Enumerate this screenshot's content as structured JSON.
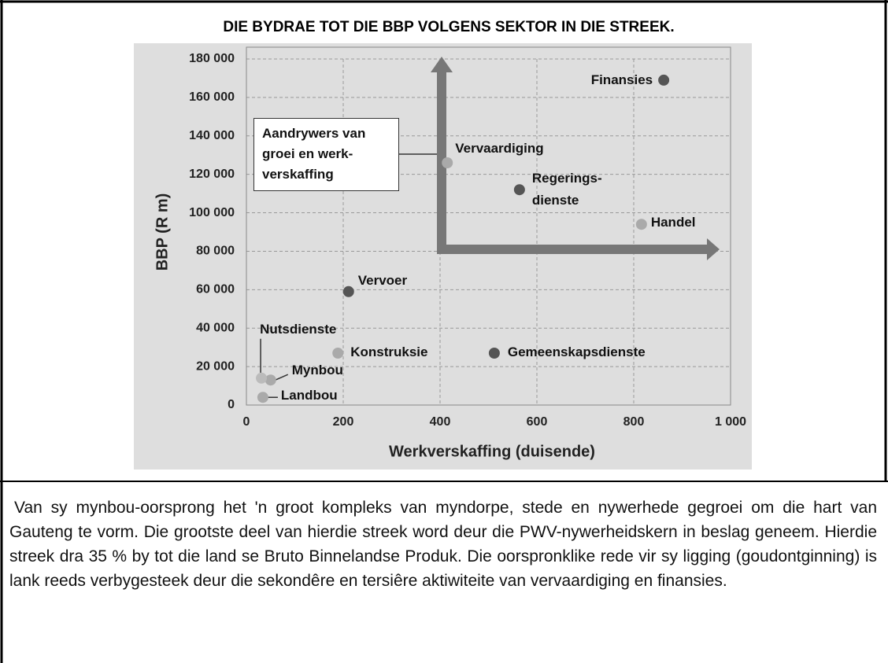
{
  "chart_data": {
    "type": "scatter",
    "title": "DIE BYDRAE TOT DIE BBP VOLGENS SEKTOR IN DIE STREEK.",
    "xlabel": "Werkverskaffing (duisende)",
    "ylabel": "BBP (R m)",
    "annotation": "Aandrywers van\ngroei en werk-\nverskaffing",
    "labels": [
      "Finansies",
      "Vervaardiging",
      "Regerings-\ndienste",
      "Handel",
      "Vervoer",
      "Konstruksie",
      "Gemeenskapsdienste",
      "Mynbou",
      "Landbou",
      "Nutsdienste"
    ],
    "x": [
      862,
      415,
      564,
      816,
      211,
      189,
      512,
      50,
      34,
      31
    ],
    "values": [
      169000,
      126000,
      112000,
      94000,
      59000,
      27000,
      27000,
      13000,
      4000,
      14000
    ],
    "colors": [
      "#555555",
      "#aaaaaa",
      "#555555",
      "#aaaaaa",
      "#555555",
      "#aaaaaa",
      "#555555",
      "#aaaaaa",
      "#aaaaaa",
      "#bbbbbb"
    ],
    "xlim": [
      0,
      1000
    ],
    "ylim": [
      0,
      180000
    ],
    "xticks": [
      0,
      200,
      400,
      600,
      800,
      {
        "value": 1000,
        "label": "1 000"
      }
    ],
    "yticks": [
      0,
      {
        "value": 20000,
        "label": "20 000"
      },
      {
        "value": 40000,
        "label": "40 000"
      },
      {
        "value": 60000,
        "label": "60 000"
      },
      {
        "value": 80000,
        "label": "80 000"
      },
      {
        "value": 100000,
        "label": "100 000"
      },
      {
        "value": 120000,
        "label": "120 000"
      },
      {
        "value": 140000,
        "label": "140 000"
      },
      {
        "value": 160000,
        "label": "160 000"
      },
      {
        "value": 180000,
        "label": "180 000"
      }
    ],
    "grid": true
  },
  "paragraph": "Van sy mynbou-oorsprong het 'n groot kompleks van myndorpe, stede en nywerhede gegroei om die hart van Gauteng te vorm. Die grootste deel van hierdie streek word deur die PWV-nywerheidskern in beslag geneem. Hierdie streek dra 35 % by tot die land se Bruto Binnelandse Produk. Die oorspronklike rede vir sy ligging (goudontginning) is lank reeds verbygesteek deur die sekondêre en tersiêre aktiwiteite van vervaardiging en finansies."
}
